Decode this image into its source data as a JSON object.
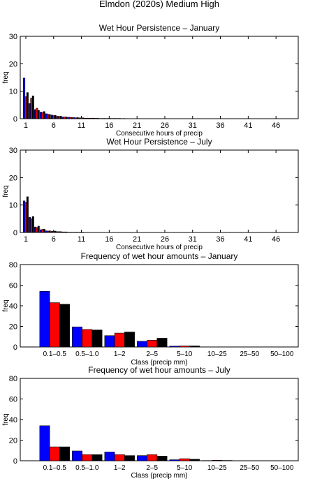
{
  "figure_title": "Elmdon (2020s) Medium High",
  "colors": {
    "series1": "#0000ff",
    "series2": "#ff0000",
    "series3": "#000000"
  },
  "chart_data": [
    {
      "type": "bar",
      "title": "Wet Hour Persistence – January",
      "xlabel": "Consecutive hours of precip",
      "ylabel": "freq",
      "xlim": [
        0,
        50
      ],
      "ylim": [
        0,
        30
      ],
      "xticks": [
        1,
        6,
        11,
        16,
        21,
        26,
        31,
        36,
        41,
        46
      ],
      "yticks": [
        0,
        10,
        20,
        30
      ],
      "grid": false,
      "categories": [
        1,
        2,
        3,
        4,
        5,
        6,
        7,
        8,
        9,
        10,
        11,
        12,
        13,
        14,
        15,
        16,
        17,
        18,
        19,
        20,
        21,
        22,
        23,
        24,
        25
      ],
      "series": [
        {
          "values": [
            14.8,
            5.5,
            3.3,
            2.4,
            1.8,
            1.3,
            0.9,
            0.6,
            0.5,
            0.4,
            0.3,
            0.2,
            0.2,
            0.15,
            0.1,
            0.1,
            0.1,
            0.1,
            0.1,
            0.05,
            0.05,
            0.05,
            0.05,
            0.05,
            0.05
          ]
        },
        {
          "values": [
            8.0,
            7.5,
            3.8,
            2.2,
            1.6,
            1.1,
            0.8,
            0.6,
            0.5,
            0.3,
            0.3,
            0.2,
            0.2,
            0.15,
            0.1,
            0.1,
            0.1,
            0.1,
            0.05,
            0.05,
            0.05,
            0.05,
            0.05,
            0.05,
            0.05
          ]
        },
        {
          "values": [
            9.5,
            8.3,
            3.0,
            2.6,
            1.5,
            1.2,
            0.9,
            0.6,
            0.4,
            0.4,
            0.3,
            0.2,
            0.2,
            0.1,
            0.1,
            0.1,
            0.1,
            0.05,
            0.05,
            0.05,
            0.05,
            0.05,
            0.05,
            0.05,
            0.05
          ]
        }
      ]
    },
    {
      "type": "bar",
      "title": "Wet Hour Persistence – July",
      "xlabel": "Consecutive hours of precip",
      "ylabel": "freq",
      "xlim": [
        0,
        50
      ],
      "ylim": [
        0,
        30
      ],
      "xticks": [
        1,
        6,
        11,
        16,
        21,
        26,
        31,
        36,
        41,
        46
      ],
      "yticks": [
        0,
        10,
        20,
        30
      ],
      "grid": false,
      "categories": [
        1,
        2,
        3,
        4,
        5,
        6,
        7,
        8,
        9,
        10,
        11
      ],
      "series": [
        {
          "values": [
            11.5,
            5.5,
            2.0,
            1.0,
            0.6,
            0.4,
            0.3,
            0.2,
            0.1,
            0.1,
            0.1
          ]
        },
        {
          "values": [
            11.0,
            5.0,
            1.8,
            1.1,
            0.5,
            0.4,
            0.3,
            0.2,
            0.1,
            0.1,
            0.1
          ]
        },
        {
          "values": [
            13.0,
            5.8,
            2.3,
            1.2,
            0.6,
            0.5,
            0.3,
            0.2,
            0.1,
            0.1,
            0.1
          ]
        }
      ]
    },
    {
      "type": "bar",
      "title": "Frequency of wet hour amounts – January",
      "xlabel": "Class (precip mm)",
      "ylabel": "freq",
      "ylim": [
        0,
        80
      ],
      "yticks": [
        0,
        20,
        40,
        60,
        80
      ],
      "grid": false,
      "categories": [
        "0.1–0.5",
        "0.5–1.0",
        "1–2",
        "2–5",
        "5–10",
        "10–25",
        "25–50",
        "50–100"
      ],
      "series": [
        {
          "values": [
            54,
            19.5,
            11,
            5.5,
            0.8,
            0.1,
            0,
            0
          ]
        },
        {
          "values": [
            43,
            17,
            13.5,
            6.5,
            1.0,
            0.1,
            0,
            0
          ]
        },
        {
          "values": [
            41.5,
            16.5,
            14.5,
            8.5,
            1.0,
            0.1,
            0,
            0
          ]
        }
      ]
    },
    {
      "type": "bar",
      "title": "Frequency of wet hour amounts – July",
      "xlabel": "Class (precip mm)",
      "ylabel": "freq",
      "ylim": [
        0,
        80
      ],
      "yticks": [
        0,
        20,
        40,
        60,
        80
      ],
      "grid": false,
      "categories": [
        "0.1–0.5",
        "0.5–1.0",
        "1–2",
        "2–5",
        "5–10",
        "10–25",
        "25–50",
        "50–100"
      ],
      "series": [
        {
          "values": [
            34,
            9.5,
            8.5,
            5,
            1.0,
            0.2,
            0,
            0
          ]
        },
        {
          "values": [
            13.5,
            6,
            6,
            6,
            2.0,
            0.5,
            0,
            0
          ]
        },
        {
          "values": [
            13.5,
            6,
            5,
            4.5,
            1.5,
            0.3,
            0,
            0
          ]
        }
      ]
    }
  ]
}
